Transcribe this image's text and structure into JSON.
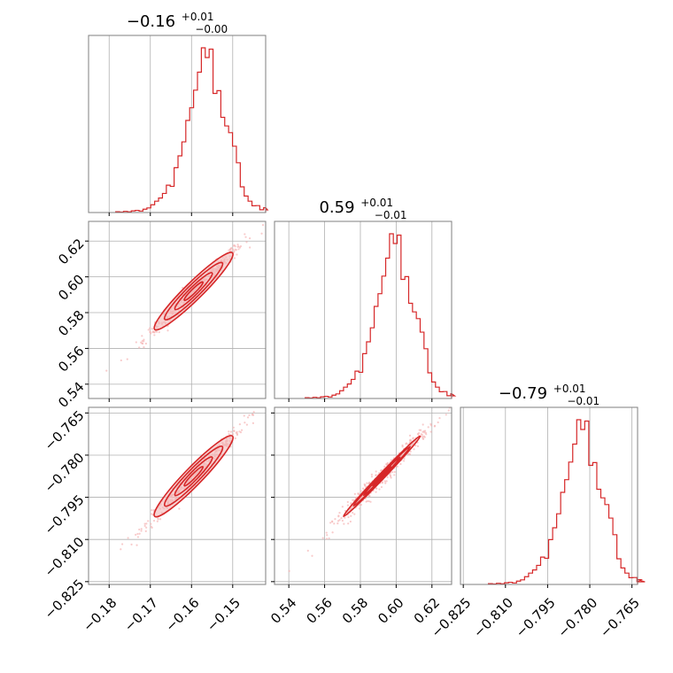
{
  "colors": {
    "series": "#d62728",
    "contour_fill": "#f2b6b6",
    "points": "#f5b5b5",
    "grid": "#b0b0b0",
    "frame": "#7f7f7f"
  },
  "chart_data": {
    "type": "corner",
    "grid": true,
    "parameters": [
      {
        "title": "−0.16",
        "upper": "+0.01",
        "lower": "−0.00",
        "range": [
          -0.185,
          -0.142
        ],
        "ticks": [
          -0.18,
          -0.17,
          -0.16,
          -0.15
        ],
        "tick_labels": [
          "−0.18",
          "−0.17",
          "−0.16",
          "−0.15"
        ],
        "center": -0.1595,
        "sigma": 0.0045,
        "hist_bins": [
          0.005,
          0.003,
          0.007,
          0.004,
          0.01,
          0.013,
          0.009,
          0.02,
          0.028,
          0.047,
          0.069,
          0.088,
          0.116,
          0.166,
          0.159,
          0.272,
          0.344,
          0.429,
          0.559,
          0.636,
          0.743,
          0.852,
          1.0,
          0.941,
          0.992,
          0.723,
          0.74,
          0.578,
          0.526,
          0.485,
          0.403,
          0.302,
          0.156,
          0.1,
          0.069,
          0.041,
          0.042,
          0.017,
          0.029,
          0.016
        ]
      },
      {
        "title": "0.59",
        "upper": "+0.01",
        "lower": "−0.01",
        "range": [
          0.532,
          0.631
        ],
        "ticks": [
          0.54,
          0.56,
          0.58,
          0.6,
          0.62
        ],
        "tick_labels": [
          "0.54",
          "0.56",
          "0.58",
          "0.60",
          "0.62"
        ],
        "center": 0.592,
        "sigma": 0.0102,
        "hist_bins": [
          0.005,
          0.003,
          0.007,
          0.004,
          0.01,
          0.013,
          0.009,
          0.02,
          0.028,
          0.047,
          0.069,
          0.088,
          0.116,
          0.166,
          0.159,
          0.272,
          0.344,
          0.429,
          0.559,
          0.636,
          0.743,
          0.852,
          1.0,
          0.941,
          0.992,
          0.723,
          0.74,
          0.578,
          0.526,
          0.485,
          0.403,
          0.302,
          0.156,
          0.1,
          0.069,
          0.041,
          0.042,
          0.017,
          0.029,
          0.016
        ]
      },
      {
        "title": "−0.79",
        "upper": "+0.01",
        "lower": "−0.01",
        "range": [
          -0.826,
          -0.763
        ],
        "ticks": [
          -0.825,
          -0.81,
          -0.795,
          -0.78,
          -0.765
        ],
        "tick_labels": [
          "−0.825",
          "−0.810",
          "−0.795",
          "−0.780",
          "−0.765"
        ],
        "center": -0.7875,
        "sigma": 0.0068,
        "hist_bins": [
          0.005,
          0.003,
          0.007,
          0.004,
          0.01,
          0.013,
          0.009,
          0.02,
          0.028,
          0.047,
          0.069,
          0.088,
          0.116,
          0.166,
          0.159,
          0.272,
          0.344,
          0.429,
          0.559,
          0.636,
          0.743,
          0.852,
          1.0,
          0.941,
          0.992,
          0.723,
          0.74,
          0.578,
          0.526,
          0.485,
          0.403,
          0.302,
          0.156,
          0.1,
          0.069,
          0.041,
          0.042,
          0.017,
          0.029,
          0.016
        ]
      }
    ]
  }
}
